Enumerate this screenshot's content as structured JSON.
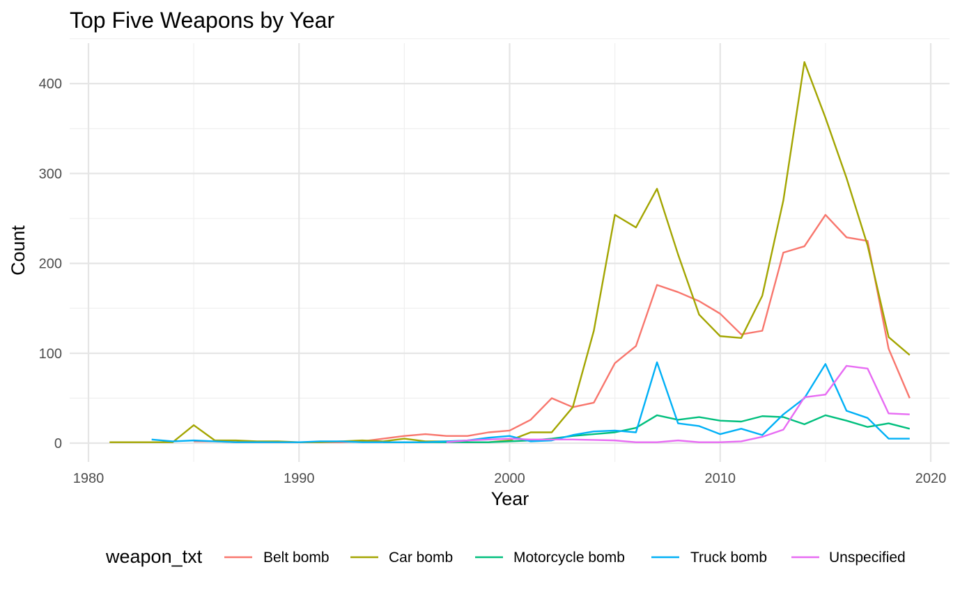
{
  "chart_data": {
    "type": "line",
    "title": "Top Five Weapons by Year",
    "xlabel": "Year",
    "ylabel": "Count",
    "xlim": [
      1980,
      2020
    ],
    "ylim": [
      0,
      440
    ],
    "x_ticks": [
      1980,
      1990,
      2000,
      2010,
      2020
    ],
    "y_ticks": [
      0,
      100,
      200,
      300,
      400
    ],
    "grid": true,
    "legend": {
      "title": "weapon_txt",
      "position": "bottom"
    },
    "series": [
      {
        "name": "Belt bomb",
        "color": "#F8766D",
        "x": [
          1985,
          1986,
          1987,
          1988,
          1989,
          1990,
          1991,
          1992,
          1993,
          1994,
          1995,
          1996,
          1997,
          1998,
          1999,
          2000,
          2001,
          2002,
          2003,
          2004,
          2005,
          2006,
          2007,
          2008,
          2009,
          2010,
          2011,
          2012,
          2013,
          2014,
          2015,
          2016,
          2017,
          2018,
          2019
        ],
        "y": [
          2,
          2,
          1,
          1,
          1,
          1,
          1,
          1,
          2,
          5,
          8,
          10,
          8,
          8,
          12,
          14,
          26,
          50,
          40,
          45,
          89,
          108,
          176,
          168,
          158,
          144,
          121,
          125,
          212,
          219,
          254,
          229,
          225,
          105,
          50
        ]
      },
      {
        "name": "Car bomb",
        "color": "#A3A500",
        "x": [
          1981,
          1982,
          1983,
          1984,
          1985,
          1986,
          1987,
          1988,
          1989,
          1990,
          1991,
          1992,
          1993,
          1994,
          1995,
          1996,
          1997,
          1998,
          1999,
          2000,
          2001,
          2002,
          2003,
          2004,
          2005,
          2006,
          2007,
          2008,
          2009,
          2010,
          2011,
          2012,
          2013,
          2014,
          2015,
          2016,
          2017,
          2018,
          2019
        ],
        "y": [
          1,
          1,
          1,
          1,
          20,
          3,
          3,
          2,
          2,
          1,
          1,
          2,
          3,
          2,
          5,
          2,
          2,
          1,
          1,
          3,
          12,
          12,
          40,
          125,
          254,
          240,
          283,
          210,
          143,
          119,
          117,
          164,
          270,
          424,
          362,
          295,
          220,
          118,
          98
        ]
      },
      {
        "name": "Motorcycle bomb",
        "color": "#00BF7D",
        "x": [
          1994,
          1995,
          1996,
          1997,
          1998,
          1999,
          2000,
          2001,
          2002,
          2003,
          2004,
          2005,
          2006,
          2007,
          2008,
          2009,
          2010,
          2011,
          2012,
          2013,
          2014,
          2015,
          2016,
          2017,
          2018,
          2019
        ],
        "y": [
          1,
          1,
          1,
          1,
          1,
          1,
          2,
          3,
          5,
          8,
          10,
          12,
          17,
          31,
          26,
          29,
          25,
          24,
          30,
          29,
          21,
          31,
          25,
          18,
          22,
          16
        ]
      },
      {
        "name": "Truck bomb",
        "color": "#00B0F6",
        "x": [
          1983,
          1984,
          1985,
          1986,
          1987,
          1988,
          1989,
          1990,
          1991,
          1992,
          1993,
          1994,
          1995,
          1996,
          1997,
          1998,
          1999,
          2000,
          2001,
          2002,
          2003,
          2004,
          2005,
          2006,
          2007,
          2008,
          2009,
          2010,
          2011,
          2012,
          2013,
          2014,
          2015,
          2016,
          2017,
          2018,
          2019
        ],
        "y": [
          4,
          2,
          3,
          2,
          1,
          1,
          1,
          1,
          2,
          2,
          1,
          1,
          1,
          1,
          2,
          3,
          6,
          8,
          2,
          3,
          9,
          13,
          14,
          12,
          90,
          22,
          19,
          10,
          16,
          9,
          32,
          50,
          88,
          36,
          28,
          5,
          5
        ]
      },
      {
        "name": "Unspecified",
        "color": "#E76BF3",
        "x": [
          1997,
          1998,
          1999,
          2000,
          2001,
          2002,
          2003,
          2004,
          2005,
          2006,
          2007,
          2008,
          2009,
          2010,
          2011,
          2012,
          2013,
          2014,
          2015,
          2016,
          2017,
          2018,
          2019
        ],
        "y": [
          1,
          3,
          4,
          5,
          4,
          4,
          4,
          3.5,
          3,
          1,
          1,
          3,
          1,
          1,
          2,
          7,
          15,
          51,
          54,
          86,
          83,
          33,
          32
        ]
      }
    ]
  }
}
